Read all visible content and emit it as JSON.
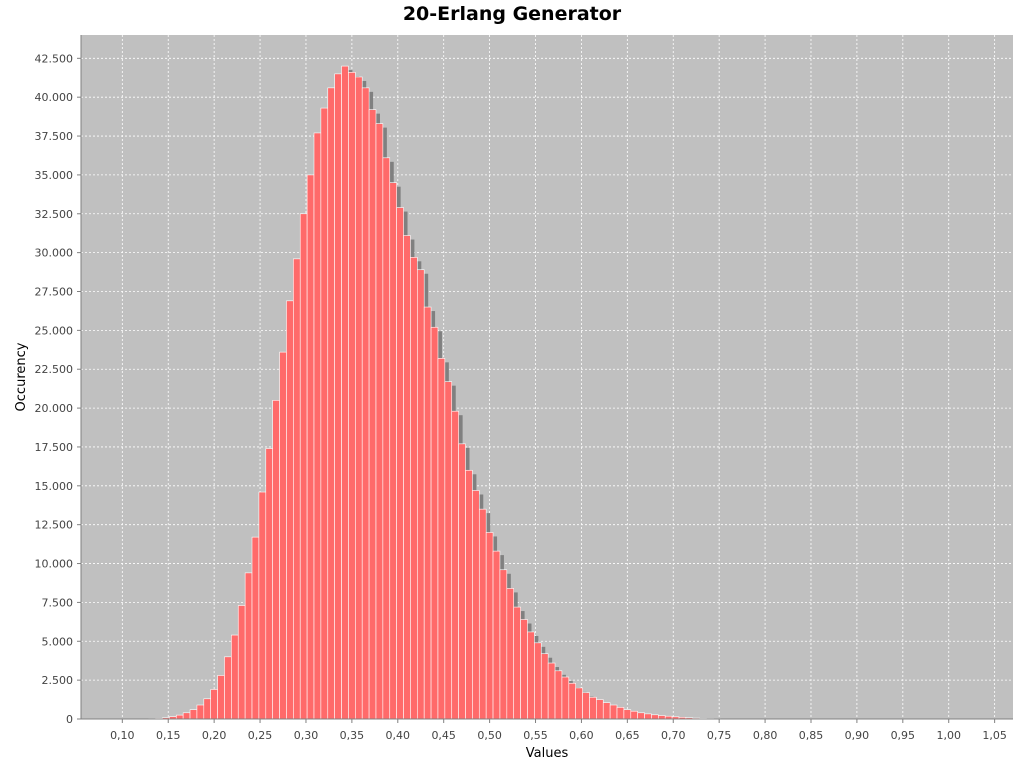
{
  "chart_data": {
    "type": "bar",
    "title": "20-Erlang Generator",
    "xlabel": "Values",
    "ylabel": "Occurency",
    "xlim": [
      0.055,
      1.07
    ],
    "ylim": [
      0,
      44000
    ],
    "grid": true,
    "legend": "none",
    "x_ticks": [
      "0,10",
      "0,15",
      "0,20",
      "0,25",
      "0,30",
      "0,35",
      "0,40",
      "0,45",
      "0,50",
      "0,55",
      "0,60",
      "0,65",
      "0,70",
      "0,75",
      "0,80",
      "0,85",
      "0,90",
      "0,95",
      "1,00",
      "1,05"
    ],
    "y_ticks": [
      "0",
      "2.500",
      "5.000",
      "7.500",
      "10.000",
      "12.500",
      "15.000",
      "17.500",
      "20.000",
      "22.500",
      "25.000",
      "27.500",
      "30.000",
      "32.500",
      "35.000",
      "37.500",
      "40.000",
      "42.500"
    ],
    "bar_width": 0.0075,
    "x": [
      0.125,
      0.1325,
      0.14,
      0.1475,
      0.155,
      0.1625,
      0.17,
      0.1775,
      0.185,
      0.1925,
      0.2,
      0.2075,
      0.215,
      0.2225,
      0.23,
      0.2375,
      0.245,
      0.2525,
      0.26,
      0.2675,
      0.275,
      0.2825,
      0.29,
      0.2975,
      0.305,
      0.3125,
      0.32,
      0.3275,
      0.335,
      0.3425,
      0.35,
      0.3575,
      0.365,
      0.3725,
      0.38,
      0.3875,
      0.395,
      0.4025,
      0.41,
      0.4175,
      0.425,
      0.4325,
      0.44,
      0.4475,
      0.455,
      0.4625,
      0.47,
      0.4775,
      0.485,
      0.4925,
      0.5,
      0.5075,
      0.515,
      0.5225,
      0.53,
      0.5375,
      0.545,
      0.5525,
      0.56,
      0.5675,
      0.575,
      0.5825,
      0.59,
      0.5975,
      0.605,
      0.6125,
      0.62,
      0.6275,
      0.635,
      0.6425,
      0.65,
      0.6575,
      0.665,
      0.6725,
      0.68,
      0.6875,
      0.695,
      0.7025,
      0.71,
      0.7175,
      0.725,
      0.7325,
      0.74,
      0.7475,
      0.755,
      0.7625,
      0.77,
      0.7775,
      0.785,
      0.7925,
      0.8,
      0.8075,
      0.815
    ],
    "values": [
      10,
      20,
      40,
      80,
      150,
      250,
      400,
      600,
      900,
      1300,
      1900,
      2800,
      4000,
      5400,
      7300,
      9400,
      11700,
      14600,
      17400,
      20500,
      23600,
      26900,
      29600,
      32500,
      35000,
      37700,
      39300,
      40600,
      41500,
      42000,
      41600,
      41300,
      40600,
      39200,
      38300,
      36100,
      34500,
      32900,
      31100,
      29700,
      28900,
      26500,
      25200,
      23200,
      21700,
      19800,
      17700,
      16000,
      14700,
      13500,
      12000,
      10800,
      9600,
      8400,
      7200,
      6400,
      5600,
      4900,
      4200,
      3600,
      3100,
      2700,
      2300,
      2000,
      1700,
      1400,
      1250,
      1050,
      900,
      750,
      600,
      500,
      400,
      330,
      270,
      220,
      180,
      140,
      110,
      80,
      60,
      45,
      30,
      20,
      12,
      8,
      5,
      3,
      2,
      1,
      1,
      0,
      0
    ]
  }
}
